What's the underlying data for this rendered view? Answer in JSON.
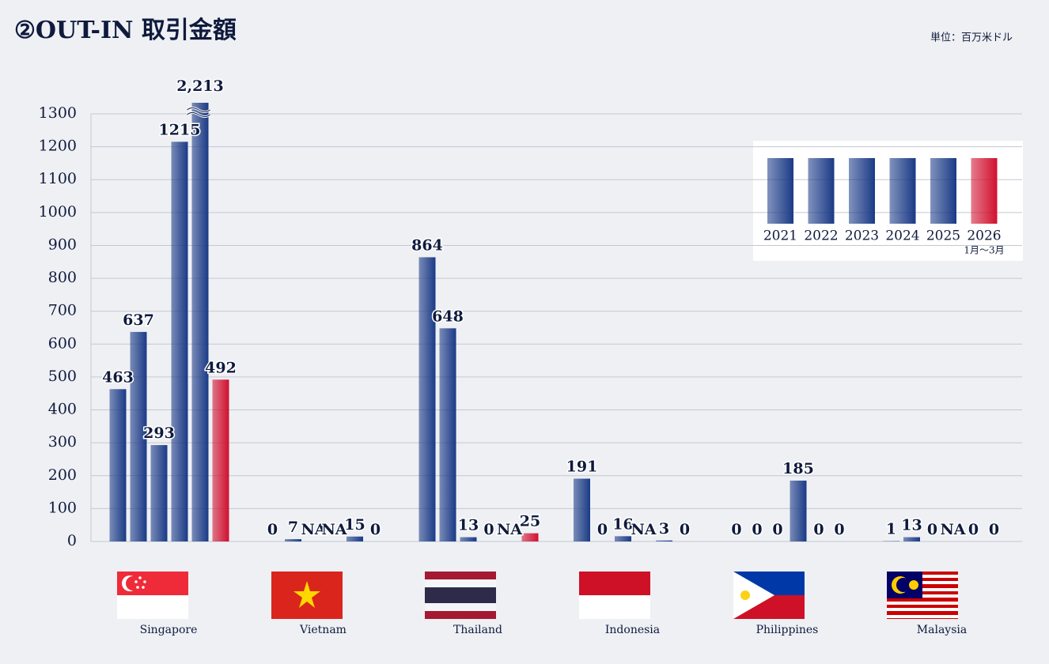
{
  "chart_data": {
    "type": "bar",
    "title": "②OUT-IN 取引金額",
    "unit_label": "単位：百万米ドル",
    "categories": [
      "Singapore",
      "Vietnam",
      "Thailand",
      "Indonesia",
      "Philippines",
      "Malaysia"
    ],
    "series": [
      {
        "name": "2021",
        "color": "#1a3a86",
        "values": [
          463,
          0,
          864,
          191,
          0,
          1
        ]
      },
      {
        "name": "2022",
        "color": "#1a3a86",
        "values": [
          637,
          7,
          648,
          0,
          0,
          13
        ]
      },
      {
        "name": "2023",
        "color": "#1a3a86",
        "values": [
          293,
          null,
          13,
          16,
          0,
          0
        ],
        "value_labels": [
          null,
          "NA",
          null,
          null,
          null,
          null
        ]
      },
      {
        "name": "2024",
        "color": "#1a3a86",
        "values": [
          1215,
          null,
          0,
          null,
          185,
          null
        ],
        "value_labels": [
          null,
          "NA",
          null,
          "NA",
          null,
          "NA"
        ]
      },
      {
        "name": "2025",
        "color": "#1a3a86",
        "values": [
          2213,
          15,
          null,
          3,
          0,
          0
        ],
        "value_labels": [
          "2,213",
          null,
          "NA",
          null,
          null,
          null
        ]
      },
      {
        "name": "2026",
        "sublabel": "1月～3月",
        "color": "#d0102e",
        "values": [
          492,
          0,
          25,
          0,
          0,
          0
        ]
      }
    ],
    "ylim": [
      0,
      1300
    ],
    "yticks": [
      0,
      100,
      200,
      300,
      400,
      500,
      600,
      700,
      800,
      900,
      1000,
      1100,
      1200,
      1300
    ],
    "grid": true
  }
}
